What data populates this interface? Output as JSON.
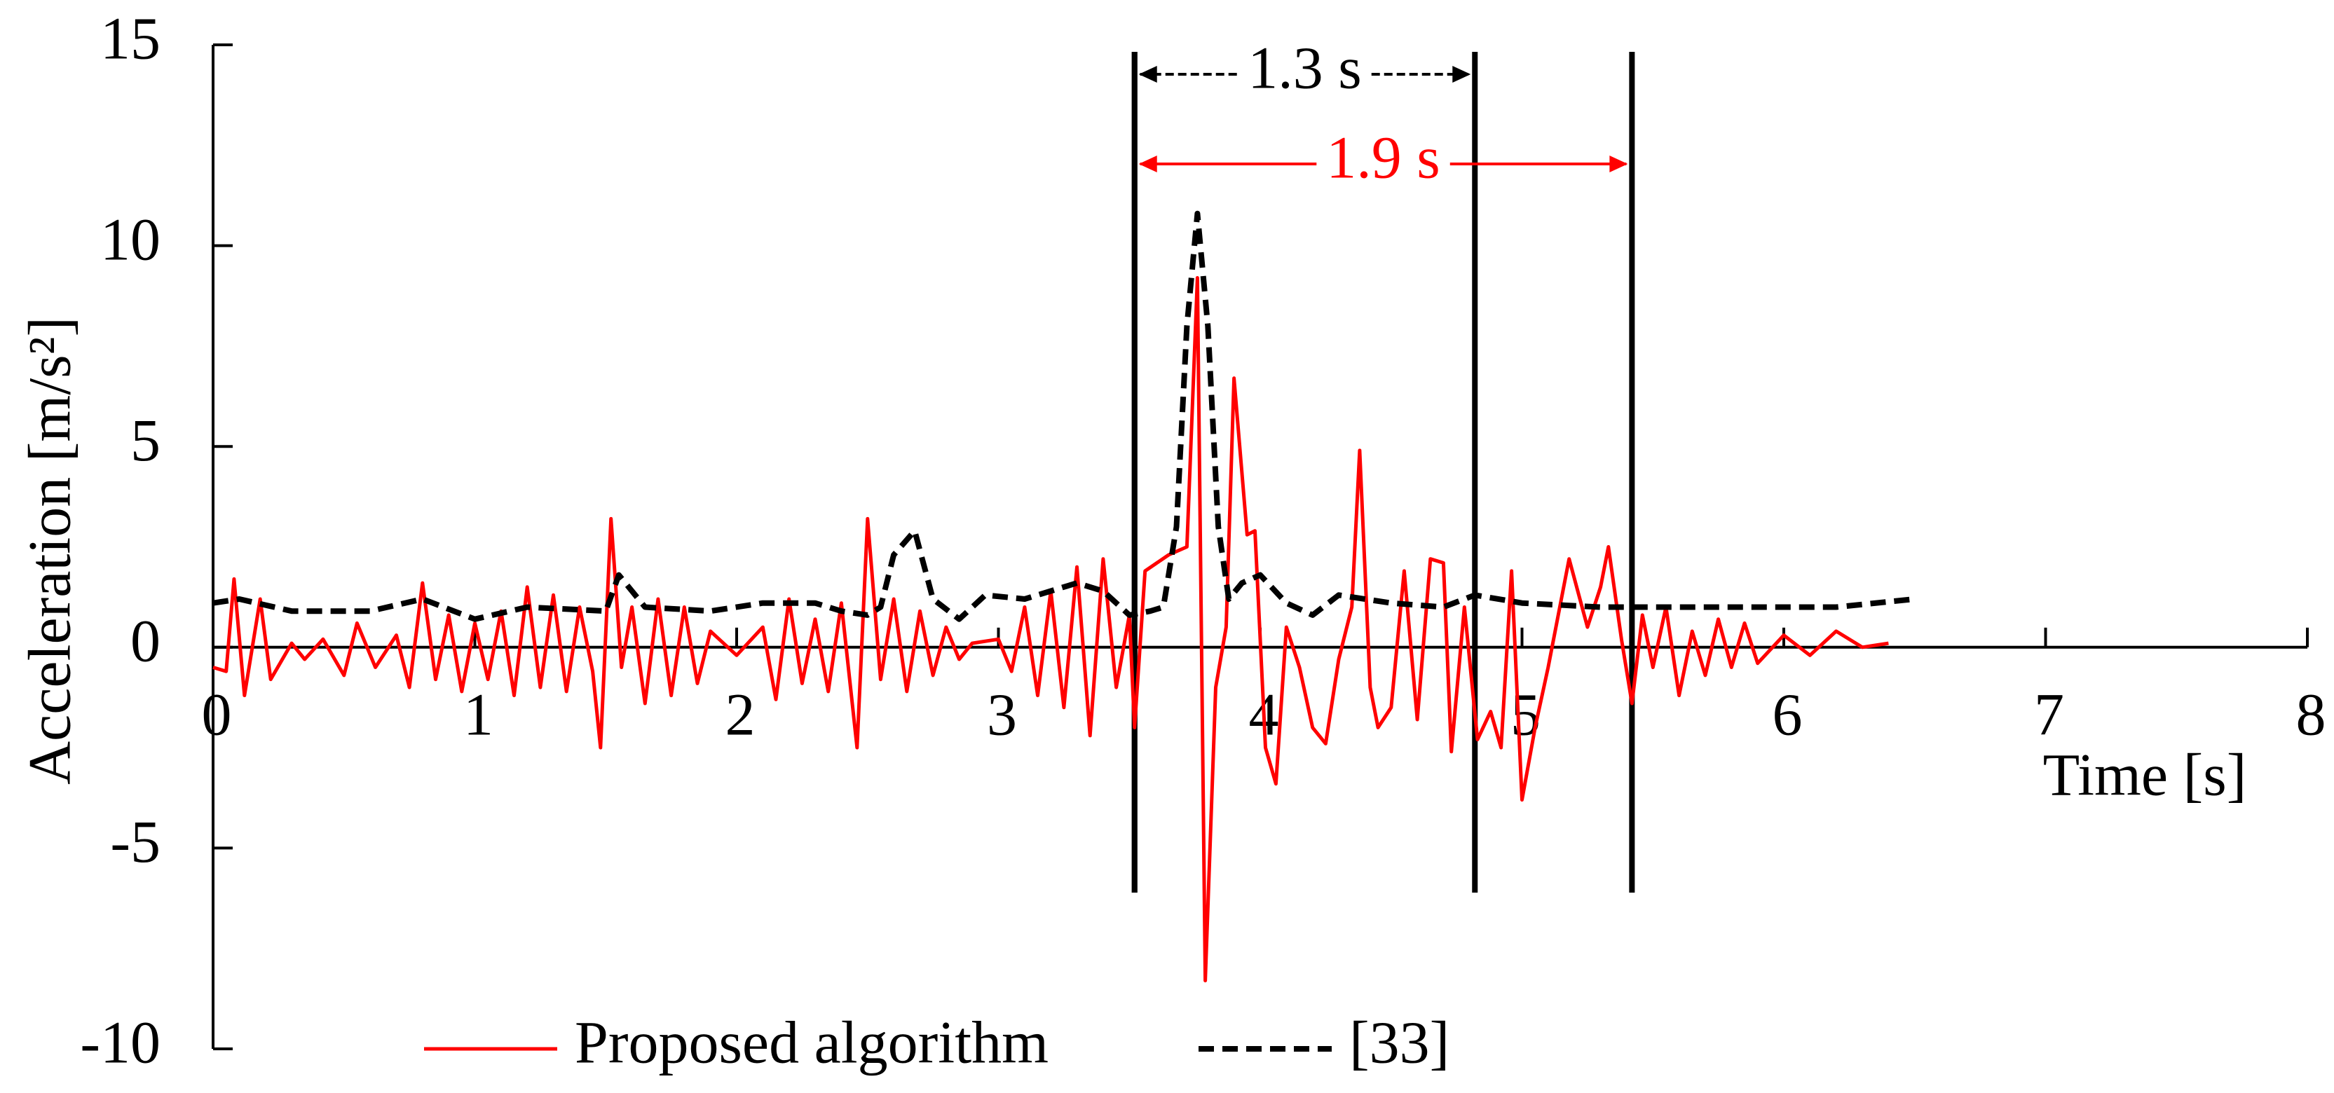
{
  "chart_data": {
    "type": "line",
    "xlabel": "Time [s]",
    "ylabel": "Acceleration [m/s²]",
    "xlim": [
      0,
      8
    ],
    "xticks": [
      0,
      1,
      2,
      3,
      4,
      5,
      6,
      7,
      8
    ],
    "ylim": [
      -10,
      15
    ],
    "yticks": [
      -10,
      -5,
      0,
      5,
      10,
      15
    ],
    "series": [
      {
        "name": "Proposed algorithm",
        "color": "#ff0000",
        "dash": false,
        "x": [
          0,
          0.05,
          0.08,
          0.12,
          0.18,
          0.22,
          0.3,
          0.35,
          0.42,
          0.5,
          0.55,
          0.62,
          0.7,
          0.75,
          0.8,
          0.85,
          0.9,
          0.95,
          1.0,
          1.05,
          1.1,
          1.15,
          1.2,
          1.25,
          1.3,
          1.35,
          1.4,
          1.45,
          1.48,
          1.52,
          1.56,
          1.6,
          1.65,
          1.7,
          1.75,
          1.8,
          1.85,
          1.9,
          2.0,
          2.1,
          2.15,
          2.2,
          2.25,
          2.3,
          2.35,
          2.4,
          2.46,
          2.5,
          2.55,
          2.6,
          2.65,
          2.7,
          2.75,
          2.8,
          2.85,
          2.9,
          3.0,
          3.05,
          3.1,
          3.15,
          3.2,
          3.25,
          3.3,
          3.35,
          3.4,
          3.45,
          3.5,
          3.52,
          3.56,
          3.65,
          3.72,
          3.76,
          3.79,
          3.83,
          3.87,
          3.9,
          3.95,
          3.98,
          4.02,
          4.06,
          4.1,
          4.15,
          4.2,
          4.25,
          4.3,
          4.35,
          4.38,
          4.42,
          4.45,
          4.5,
          4.55,
          4.6,
          4.65,
          4.7,
          4.73,
          4.78,
          4.83,
          4.88,
          4.92,
          4.96,
          5.0,
          5.05,
          5.1,
          5.18,
          5.25,
          5.3,
          5.33,
          5.38,
          5.42,
          5.46,
          5.5,
          5.55,
          5.6,
          5.65,
          5.7,
          5.75,
          5.8,
          5.85,
          5.9,
          6.0,
          6.1,
          6.2,
          6.3,
          6.4
        ],
        "values": [
          -0.5,
          -0.6,
          1.7,
          -1.2,
          1.2,
          -0.8,
          0.1,
          -0.3,
          0.2,
          -0.7,
          0.6,
          -0.5,
          0.3,
          -1.0,
          1.6,
          -0.8,
          0.8,
          -1.1,
          0.6,
          -0.8,
          0.9,
          -1.2,
          1.5,
          -1.0,
          1.3,
          -1.1,
          1.0,
          -0.6,
          -2.5,
          3.2,
          -0.5,
          1.0,
          -1.4,
          1.2,
          -1.2,
          1.0,
          -0.9,
          0.4,
          -0.2,
          0.5,
          -1.3,
          1.2,
          -0.9,
          0.7,
          -1.1,
          1.1,
          -2.5,
          3.2,
          -0.8,
          1.2,
          -1.1,
          0.9,
          -0.7,
          0.5,
          -0.3,
          0.1,
          0.2,
          -0.6,
          1.0,
          -1.2,
          1.4,
          -1.5,
          2.0,
          -2.2,
          2.2,
          -1.0,
          0.8,
          -2.0,
          1.9,
          2.3,
          2.5,
          9.2,
          -8.3,
          -1.0,
          0.5,
          6.7,
          2.8,
          2.9,
          -2.5,
          -3.4,
          0.5,
          -0.5,
          -2.0,
          -2.4,
          -0.3,
          1.0,
          4.9,
          -1.0,
          -2.0,
          -1.5,
          1.9,
          -1.8,
          2.2,
          2.1,
          -2.6,
          1.0,
          -2.3,
          -1.6,
          -2.5,
          1.9,
          -3.8,
          -2.0,
          -0.5,
          2.2,
          0.5,
          1.5,
          2.5,
          0.2,
          -1.4,
          0.8,
          -0.5,
          1.0,
          -1.2,
          0.4,
          -0.7,
          0.7,
          -0.5,
          0.6,
          -0.4,
          0.3,
          -0.2,
          0.4,
          0.0,
          0.1
        ]
      },
      {
        "name": "[33]",
        "color": "#000000",
        "dash": true,
        "x": [
          0,
          0.1,
          0.3,
          0.6,
          0.8,
          1.0,
          1.2,
          1.5,
          1.55,
          1.65,
          1.9,
          2.1,
          2.3,
          2.4,
          2.5,
          2.55,
          2.6,
          2.68,
          2.75,
          2.85,
          2.95,
          3.1,
          3.3,
          3.4,
          3.5,
          3.58,
          3.63,
          3.68,
          3.72,
          3.76,
          3.8,
          3.84,
          3.88,
          3.93,
          4.0,
          4.1,
          4.2,
          4.3,
          4.5,
          4.7,
          4.82,
          5.0,
          5.3,
          5.5,
          5.8,
          6.2,
          6.5
        ],
        "values": [
          1.1,
          1.2,
          0.9,
          0.9,
          1.2,
          0.7,
          1.0,
          0.9,
          1.8,
          1.0,
          0.9,
          1.1,
          1.1,
          0.9,
          0.8,
          1.0,
          2.3,
          2.9,
          1.2,
          0.7,
          1.3,
          1.2,
          1.6,
          1.4,
          0.8,
          0.9,
          1.0,
          3.0,
          8.0,
          10.8,
          8.0,
          3.0,
          1.2,
          1.6,
          1.8,
          1.1,
          0.8,
          1.3,
          1.1,
          1.0,
          1.3,
          1.1,
          1.0,
          1.0,
          1.0,
          1.0,
          1.2
        ]
      }
    ],
    "spans": [
      {
        "label": "1.3 s",
        "from": 3.52,
        "to": 4.82,
        "color": "#000000",
        "dash": true
      },
      {
        "label": "1.9 s",
        "from": 3.52,
        "to": 5.42,
        "color": "#ff0000",
        "dash": false
      }
    ]
  }
}
